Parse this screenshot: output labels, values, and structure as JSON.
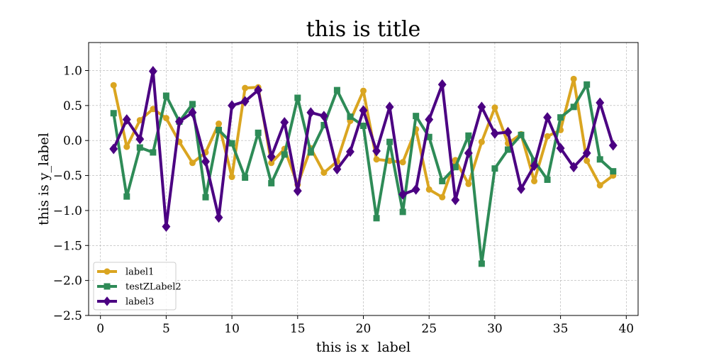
{
  "chart_data": {
    "type": "line",
    "title": "this is title",
    "xlabel": "this is x  label",
    "ylabel": "this is y_label",
    "xlim": [
      -0.9,
      40.9
    ],
    "ylim": [
      -2.5,
      1.4
    ],
    "xticks": [
      0,
      5,
      10,
      15,
      20,
      25,
      30,
      35,
      40
    ],
    "yticks": [
      -2.5,
      -2.0,
      -1.5,
      -1.0,
      -0.5,
      0.0,
      0.5,
      1.0
    ],
    "xtick_labels": [
      "0",
      "5",
      "10",
      "15",
      "20",
      "25",
      "30",
      "35",
      "40"
    ],
    "ytick_labels": [
      "−2.5",
      "−2.0",
      "−1.5",
      "−1.0",
      "−0.5",
      "0.0",
      "0.5",
      "1.0"
    ],
    "grid": true,
    "legend_position": "lower-left",
    "x": [
      1,
      2,
      3,
      4,
      5,
      6,
      7,
      8,
      9,
      10,
      11,
      12,
      13,
      14,
      15,
      16,
      17,
      18,
      19,
      20,
      21,
      22,
      23,
      24,
      25,
      26,
      27,
      28,
      29,
      30,
      31,
      32,
      33,
      34,
      35,
      36,
      37,
      38,
      39
    ],
    "series": [
      {
        "name": "label1",
        "color": "#DAA520",
        "marker": "circle",
        "values": [
          0.79,
          -0.09,
          0.29,
          0.45,
          0.32,
          -0.02,
          -0.32,
          -0.17,
          0.24,
          -0.52,
          0.75,
          0.76,
          -0.32,
          -0.12,
          -0.63,
          -0.11,
          -0.46,
          -0.3,
          0.28,
          0.71,
          -0.27,
          -0.29,
          -0.31,
          0.16,
          -0.7,
          -0.81,
          -0.28,
          -0.62,
          -0.02,
          0.47,
          -0.04,
          0.09,
          -0.58,
          0.06,
          0.15,
          0.88,
          -0.29,
          -0.64,
          -0.5
        ]
      },
      {
        "name": "testZLabel2",
        "color": "#2E8B57",
        "marker": "square",
        "values": [
          0.39,
          -0.8,
          -0.1,
          -0.17,
          0.64,
          0.27,
          0.52,
          -0.81,
          0.15,
          -0.04,
          -0.53,
          0.11,
          -0.61,
          -0.2,
          0.61,
          -0.17,
          0.22,
          0.72,
          0.34,
          0.21,
          -1.11,
          -0.02,
          -1.02,
          0.35,
          0.05,
          -0.58,
          -0.38,
          0.07,
          -1.76,
          -0.4,
          -0.13,
          0.08,
          -0.29,
          -0.56,
          0.33,
          0.48,
          0.8,
          -0.27,
          -0.44
        ]
      },
      {
        "name": "label3",
        "color": "#4B0082",
        "marker": "diamond",
        "values": [
          -0.12,
          0.3,
          0.02,
          0.99,
          -1.23,
          0.27,
          0.4,
          -0.3,
          -1.1,
          0.5,
          0.56,
          0.72,
          -0.23,
          0.26,
          -0.72,
          0.4,
          0.35,
          -0.41,
          -0.16,
          0.43,
          -0.15,
          0.48,
          -0.77,
          -0.7,
          0.3,
          0.8,
          -0.85,
          -0.18,
          0.48,
          0.1,
          0.12,
          -0.69,
          -0.36,
          0.33,
          -0.11,
          -0.38,
          -0.18,
          0.54,
          -0.07
        ]
      }
    ]
  }
}
